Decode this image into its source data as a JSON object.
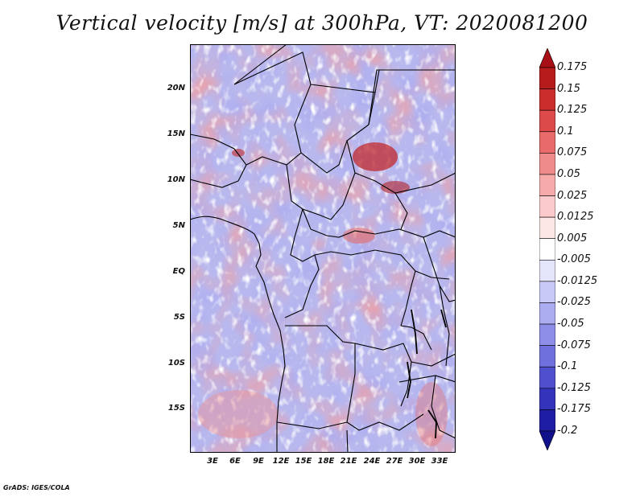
{
  "title": "Vertical velocity [m/s] at 300hPa, VT: 2020081200",
  "credit": "GrADS: IGES/COLA",
  "map": {
    "lat_ticks": [
      "20N",
      "15N",
      "10N",
      "5N",
      "EQ",
      "5S",
      "10S",
      "15S"
    ],
    "lon_ticks": [
      "3E",
      "6E",
      "9E",
      "12E",
      "15E",
      "18E",
      "21E",
      "24E",
      "27E",
      "30E",
      "33E"
    ]
  },
  "colorbar": {
    "labels": [
      "0.175",
      "0.15",
      "0.125",
      "0.1",
      "0.075",
      "0.05",
      "0.025",
      "0.0125",
      "0.005",
      "-0.005",
      "-0.0125",
      "-0.025",
      "-0.05",
      "-0.075",
      "-0.1",
      "-0.125",
      "-0.175",
      "-0.2"
    ],
    "colors": [
      "#a50f15",
      "#b71c1c",
      "#cb2d2d",
      "#dc4a4a",
      "#e86a6a",
      "#f08b8b",
      "#f6aaaa",
      "#fbcaca",
      "#fde6e6",
      "#ffffff",
      "#e4e4fb",
      "#c9c9f6",
      "#acacf0",
      "#8e8ee8",
      "#6f6fde",
      "#5050cf",
      "#3434bb",
      "#1e1ea4",
      "#10108a"
    ]
  }
}
